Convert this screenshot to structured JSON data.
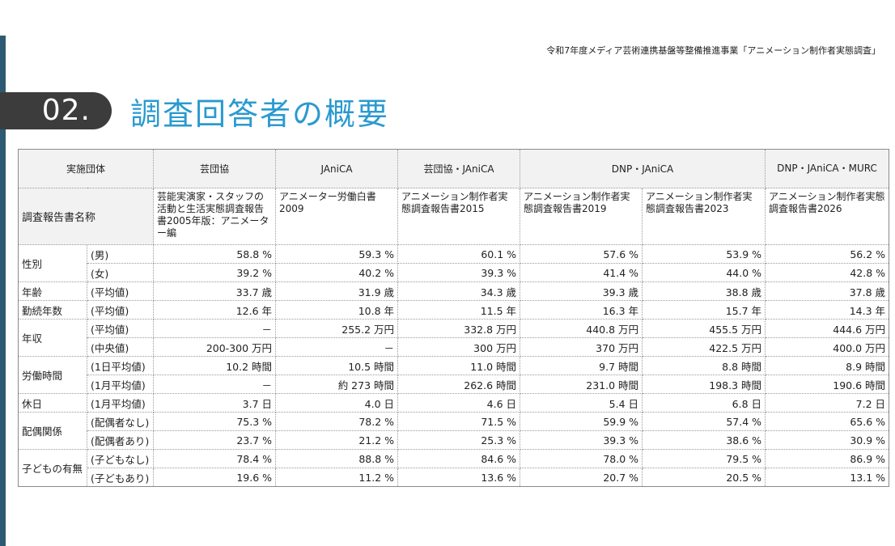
{
  "header": {
    "project": "令和7年度メディア芸術連携基盤等整備推進事業「アニメーション制作者実態調査」",
    "section_number": "02.",
    "section_title": "調査回答者の概要"
  },
  "table": {
    "org_label": "実施団体",
    "report_label": "調査報告書名称",
    "orgs": [
      "芸団協",
      "JAniCA",
      "芸団協・JAniCA",
      "DNP・JAniCA",
      "DNP・JAniCA・MURC"
    ],
    "reports": [
      "芸能実演家・スタッフの活動と生活実態調査報告書2005年版：アニメーター編",
      "アニメーター労働白書2009",
      "アニメーション制作者実態調査報告書2015",
      "アニメーション制作者実態調査報告書2019",
      "アニメーション制作者実態調査報告書2023",
      "アニメーション制作者実態調査報告書2026"
    ],
    "categories": {
      "gender": "性別",
      "age": "年齢",
      "tenure": "勤続年数",
      "income": "年収",
      "hours": "労働時間",
      "holidays": "休日",
      "spouse": "配偶関係",
      "children": "子どもの有無"
    },
    "rows": [
      {
        "sub": "(男)",
        "values": [
          "58.8 %",
          "59.3 %",
          "60.1 %",
          "57.6 %",
          "53.9 %",
          "56.2 %"
        ]
      },
      {
        "sub": "(女)",
        "values": [
          "39.2 %",
          "40.2 %",
          "39.3 %",
          "41.4 %",
          "44.0 %",
          "42.8 %"
        ]
      },
      {
        "sub": "(平均値)",
        "values": [
          "33.7 歳",
          "31.9 歳",
          "34.3 歳",
          "39.3 歳",
          "38.8 歳",
          "37.8 歳"
        ]
      },
      {
        "sub": "(平均値)",
        "values": [
          "12.6 年",
          "10.8 年",
          "11.5 年",
          "16.3 年",
          "15.7 年",
          "14.3 年"
        ]
      },
      {
        "sub": "(平均値)",
        "values": [
          "－",
          "255.2 万円",
          "332.8 万円",
          "440.8 万円",
          "455.5 万円",
          "444.6 万円"
        ]
      },
      {
        "sub": "(中央値)",
        "values": [
          "200-300 万円",
          "－",
          "300 万円",
          "370 万円",
          "422.5 万円",
          "400.0 万円"
        ]
      },
      {
        "sub": "(1日平均値)",
        "values": [
          "10.2 時間",
          "10.5 時間",
          "11.0 時間",
          "9.7 時間",
          "8.8 時間",
          "8.9 時間"
        ]
      },
      {
        "sub": "(1月平均値)",
        "values": [
          "－",
          "約 273 時間",
          "262.6 時間",
          "231.0 時間",
          "198.3 時間",
          "190.6 時間"
        ]
      },
      {
        "sub": "(1月平均値)",
        "values": [
          "3.7 日",
          "4.0 日",
          "4.6 日",
          "5.4 日",
          "6.8 日",
          "7.2 日"
        ]
      },
      {
        "sub": "(配偶者なし)",
        "values": [
          "75.3 %",
          "78.2 %",
          "71.5 %",
          "59.9 %",
          "57.4 %",
          "65.6 %"
        ]
      },
      {
        "sub": "(配偶者あり)",
        "values": [
          "23.7 %",
          "21.2 %",
          "25.3 %",
          "39.3 %",
          "38.6 %",
          "30.9 %"
        ]
      },
      {
        "sub": "(子どもなし)",
        "values": [
          "78.4 %",
          "88.8 %",
          "84.6 %",
          "78.0 %",
          "79.5 %",
          "86.9 %"
        ]
      },
      {
        "sub": "(子どもあり)",
        "values": [
          "19.6 %",
          "11.2 %",
          "13.6 %",
          "20.7 %",
          "20.5 %",
          "13.1 %"
        ]
      }
    ]
  },
  "colors": {
    "accent_blue": "#2a9ad0",
    "badge_dark": "#3c3c3c",
    "left_bar": "#2d5a73",
    "header_gray": "#f2f2f2"
  }
}
